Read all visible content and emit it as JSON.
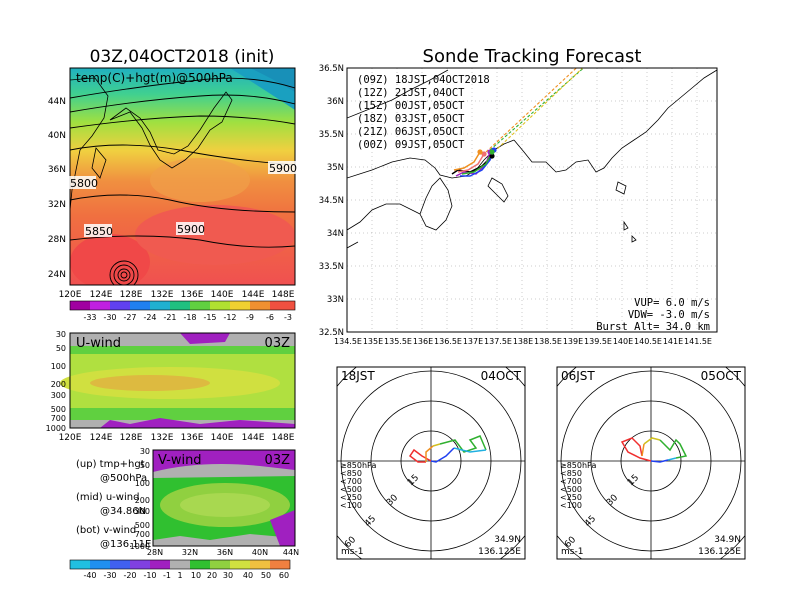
{
  "titles": {
    "left_main": "03Z,04OCT2018 (init)",
    "right_main": "Sonde Tracking Forecast"
  },
  "panel1": {
    "label": "temp(C)+hgt(m)@500hPa",
    "x_ticks": [
      "120E",
      "124E",
      "128E",
      "132E",
      "136E",
      "140E",
      "144E",
      "148E"
    ],
    "y_ticks": [
      "44N",
      "40N",
      "36N",
      "32N",
      "28N",
      "24N"
    ],
    "contour_labels": [
      "5800",
      "5900",
      "5850",
      "5900"
    ],
    "colorbar_ticks": [
      "-33",
      "-30",
      "-27",
      "-24",
      "-21",
      "-18",
      "-15",
      "-12",
      "-9",
      "-6",
      "-3"
    ]
  },
  "panel2": {
    "label": "U-wind",
    "time": "03Z",
    "y_ticks": [
      "30",
      "50",
      "100",
      "200",
      "300",
      "500",
      "700",
      "1000"
    ],
    "x_ticks": [
      "120E",
      "124E",
      "128E",
      "132E",
      "136E",
      "140E",
      "144E",
      "148E"
    ]
  },
  "panel3": {
    "label": "V-wind",
    "time": "03Z",
    "y_ticks": [
      "30",
      "50",
      "100",
      "200",
      "300",
      "500",
      "700",
      "1000"
    ],
    "x_ticks": [
      "28N",
      "32N",
      "36N",
      "40N",
      "44N"
    ]
  },
  "bottom_colorbar_ticks": [
    "-40",
    "-30",
    "-20",
    "-10",
    "-1",
    "1",
    "10",
    "20",
    "30",
    "40",
    "50",
    "60"
  ],
  "legend_notes": {
    "up1": "(up) tmp+hgt",
    "up2": "@500hPa",
    "mid1": "(mid) u-wind",
    "mid2": "@34.86N",
    "bot1": "(bot) v-wind",
    "bot2": "@136.11E"
  },
  "map": {
    "legend": [
      {
        "text": "(09Z)  18JST,04OCT2018",
        "color": "#000000"
      },
      {
        "text": "(12Z)  21JST,04OCT",
        "color": "#a020c0"
      },
      {
        "text": "(15Z)  00JST,05OCT",
        "color": "#2040f0"
      },
      {
        "text": "(18Z)  03JST,05OCT",
        "color": "#20a020"
      },
      {
        "text": "(21Z)  06JST,05OCT",
        "color": "#f07070"
      },
      {
        "text": "(00Z)  09JST,05OCT",
        "color": "#f09020"
      }
    ],
    "x_ticks": [
      "134.5E",
      "135E",
      "135.5E",
      "136E",
      "136.5E",
      "137E",
      "137.5E",
      "138E",
      "138.5E",
      "139E",
      "139.5E",
      "140E",
      "140.5E",
      "141E",
      "141.5E"
    ],
    "y_ticks": [
      "36.5N",
      "36N",
      "35.5N",
      "35N",
      "34.5N",
      "34N",
      "33.5N",
      "33N",
      "32.5N"
    ],
    "vup": "VUP=  6.0 m/s",
    "vdw": "VDW= -3.0 m/s",
    "burst": "Burst Alt= 34.0 km"
  },
  "hodo1": {
    "time": "18JST",
    "date": "04OCT",
    "rings": [
      "15",
      "30",
      "45",
      "60"
    ],
    "levels": [
      {
        "text": "≥850hPa",
        "color": "#f03030"
      },
      {
        "text": "<850",
        "color": "#f09020"
      },
      {
        "text": "<700",
        "color": "#d0c020"
      },
      {
        "text": "<500",
        "color": "#30b030"
      },
      {
        "text": "<250",
        "color": "#20b0e0"
      },
      {
        "text": "<100",
        "color": "#2040f0"
      }
    ],
    "unit": "ms-1",
    "lat": "34.9N",
    "lon": "136.125E"
  },
  "hodo2": {
    "time": "06JST",
    "date": "05OCT",
    "rings": [
      "15",
      "30",
      "45",
      "60"
    ],
    "levels": [
      {
        "text": "≥850hPa",
        "color": "#f03030"
      },
      {
        "text": "<850",
        "color": "#f09020"
      },
      {
        "text": "<700",
        "color": "#d0c020"
      },
      {
        "text": "<500",
        "color": "#30b030"
      },
      {
        "text": "<250",
        "color": "#20b0e0"
      },
      {
        "text": "<100",
        "color": "#2040f0"
      }
    ],
    "unit": "ms-1",
    "lat": "34.9N",
    "lon": "136.125E"
  }
}
